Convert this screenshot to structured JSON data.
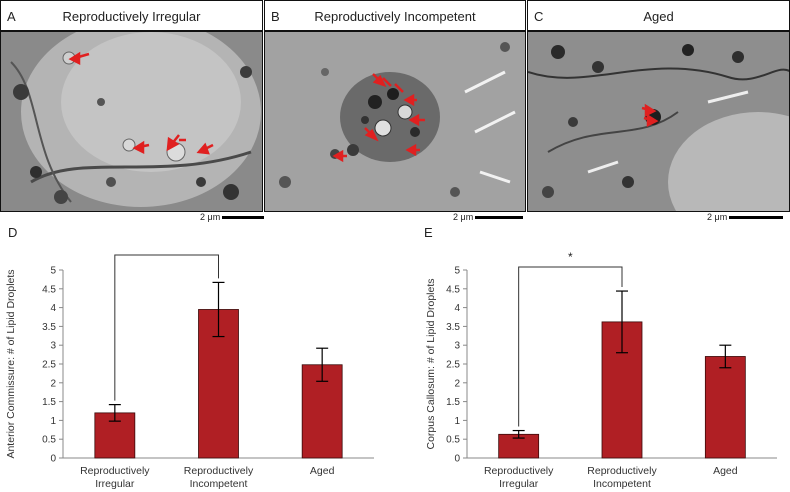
{
  "panels": [
    {
      "letter": "A",
      "title": "Reproductively Irregular",
      "scale_label": "2 μm"
    },
    {
      "letter": "B",
      "title": "Reproductively Incompetent",
      "scale_label": "2 μm"
    },
    {
      "letter": "C",
      "title": "Aged",
      "scale_label": "2 μm"
    }
  ],
  "colors": {
    "bar": "#b01f24",
    "arrow": "#e02020",
    "bracket": "#333333"
  },
  "chart_data": [
    {
      "type": "bar",
      "panel_letter": "D",
      "ylabel": "Anterior Commissure: # of Lipid Droplets",
      "categories": [
        "Reproductively Irregular",
        "Reproductively Incompetent",
        "Aged"
      ],
      "category_lines": [
        [
          "Reproductively",
          "Irregular"
        ],
        [
          "Reproductively",
          "Incompetent"
        ],
        [
          "Aged"
        ]
      ],
      "values": [
        1.2,
        3.95,
        2.48
      ],
      "errors": [
        0.22,
        0.72,
        0.44
      ],
      "ylim": [
        0,
        5
      ],
      "yticks": [
        "0",
        "0.5",
        "1",
        "1.5",
        "2",
        "2.5",
        "3",
        "3.5",
        "4",
        "4.5",
        "5"
      ],
      "significance": {
        "from": 0,
        "to": 1,
        "label": "*"
      },
      "grid": false
    },
    {
      "type": "bar",
      "panel_letter": "E",
      "ylabel": "Corpus Callosum: # of Lipid Droplets",
      "categories": [
        "Reproductively Irregular",
        "Reproductively Incompetent",
        "Aged"
      ],
      "category_lines": [
        [
          "Reproductively",
          "Irregular"
        ],
        [
          "Reproductively",
          "Incompetent"
        ],
        [
          "Aged"
        ]
      ],
      "values": [
        0.63,
        3.62,
        2.7
      ],
      "errors": [
        0.1,
        0.82,
        0.3
      ],
      "ylim": [
        0,
        5
      ],
      "yticks": [
        "0",
        "0.5",
        "1",
        "1.5",
        "2",
        "2.5",
        "3",
        "3.5",
        "4",
        "4.5",
        "5"
      ],
      "significance": {
        "from": 0,
        "to": 1,
        "label": "*"
      },
      "grid": false
    }
  ]
}
